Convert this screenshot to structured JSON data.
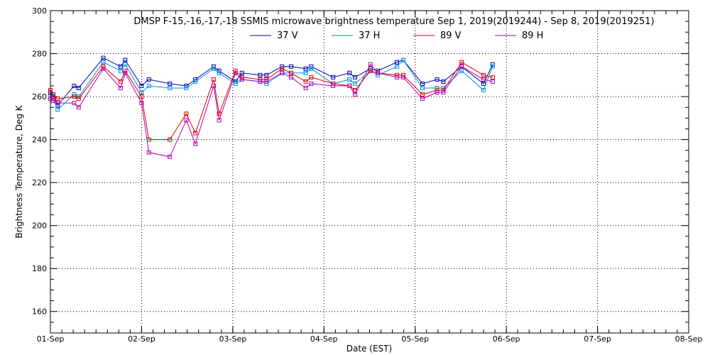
{
  "chart_data": {
    "type": "line",
    "title": "DMSP F-15,-16,-17,-18 SSMIS microwave brightness temperature Sep  1, 2019(2019244) - Sep  8, 2019(2019251)",
    "xlabel": "Date (EST)",
    "ylabel": "Brightness Temperature, Deg K",
    "xlim": [
      0,
      7
    ],
    "ylim": [
      150,
      300
    ],
    "x_ticks": [
      {
        "value": 0,
        "label": "01-Sep"
      },
      {
        "value": 1,
        "label": "02-Sep"
      },
      {
        "value": 2,
        "label": "03-Sep"
      },
      {
        "value": 3,
        "label": "04-Sep"
      },
      {
        "value": 4,
        "label": "05-Sep"
      },
      {
        "value": 5,
        "label": "06-Sep"
      },
      {
        "value": 6,
        "label": "07-Sep"
      },
      {
        "value": 7,
        "label": "08-Sep"
      }
    ],
    "y_ticks": [
      160,
      180,
      200,
      220,
      240,
      260,
      280,
      300
    ],
    "grid": true,
    "legend": "top-center",
    "series": [
      {
        "name": "37 V",
        "color": "#0000b4",
        "points": [
          [
            0.0,
            262
          ],
          [
            0.03,
            261
          ],
          [
            0.08,
            256
          ],
          [
            0.26,
            265
          ],
          [
            0.31,
            264
          ],
          [
            0.58,
            278
          ],
          [
            0.77,
            274
          ],
          [
            0.82,
            277
          ],
          [
            1.0,
            265
          ],
          [
            1.08,
            268
          ],
          [
            1.31,
            266
          ],
          [
            1.49,
            265
          ],
          [
            1.59,
            268
          ],
          [
            1.79,
            274
          ],
          [
            1.85,
            272
          ],
          [
            2.03,
            267
          ],
          [
            2.1,
            271
          ],
          [
            2.3,
            270
          ],
          [
            2.37,
            270
          ],
          [
            2.54,
            274
          ],
          [
            2.64,
            274
          ],
          [
            2.8,
            273
          ],
          [
            2.86,
            274
          ],
          [
            3.1,
            269
          ],
          [
            3.28,
            271
          ],
          [
            3.34,
            269
          ],
          [
            3.51,
            273
          ],
          [
            3.59,
            272
          ],
          [
            3.8,
            276
          ],
          [
            3.87,
            277
          ],
          [
            4.08,
            266
          ],
          [
            4.24,
            268
          ],
          [
            4.31,
            267
          ],
          [
            4.51,
            274
          ],
          [
            4.75,
            266
          ],
          [
            4.85,
            275
          ]
        ]
      },
      {
        "name": "37 H",
        "color": "#0096dc",
        "points": [
          [
            0.0,
            260
          ],
          [
            0.03,
            259
          ],
          [
            0.08,
            254
          ],
          [
            0.26,
            261
          ],
          [
            0.31,
            260
          ],
          [
            0.58,
            276
          ],
          [
            0.77,
            272
          ],
          [
            0.82,
            275
          ],
          [
            1.0,
            262
          ],
          [
            1.08,
            265
          ],
          [
            1.31,
            264
          ],
          [
            1.49,
            264
          ],
          [
            1.59,
            267
          ],
          [
            1.79,
            273
          ],
          [
            1.85,
            271
          ],
          [
            2.03,
            266
          ],
          [
            2.1,
            268
          ],
          [
            2.3,
            267
          ],
          [
            2.37,
            266
          ],
          [
            2.54,
            271
          ],
          [
            2.64,
            271
          ],
          [
            2.8,
            271
          ],
          [
            2.86,
            273
          ],
          [
            3.1,
            266
          ],
          [
            3.28,
            268
          ],
          [
            3.34,
            266
          ],
          [
            3.51,
            272
          ],
          [
            3.59,
            270
          ],
          [
            3.8,
            274
          ],
          [
            3.87,
            277
          ],
          [
            4.08,
            264
          ],
          [
            4.24,
            264
          ],
          [
            4.31,
            264
          ],
          [
            4.51,
            272
          ],
          [
            4.75,
            263
          ],
          [
            4.85,
            274
          ]
        ]
      },
      {
        "name": "89 V",
        "color": "#dc0000",
        "points": [
          [
            0.0,
            263
          ],
          [
            0.03,
            260
          ],
          [
            0.08,
            259
          ],
          [
            0.26,
            260
          ],
          [
            0.31,
            259
          ],
          [
            0.58,
            274
          ],
          [
            0.77,
            267
          ],
          [
            0.82,
            272
          ],
          [
            1.0,
            260
          ],
          [
            1.08,
            240
          ],
          [
            1.31,
            240
          ],
          [
            1.49,
            252
          ],
          [
            1.59,
            243
          ],
          [
            1.79,
            268
          ],
          [
            1.85,
            252
          ],
          [
            2.03,
            272
          ],
          [
            2.1,
            269
          ],
          [
            2.3,
            268
          ],
          [
            2.37,
            268
          ],
          [
            2.54,
            273
          ],
          [
            2.64,
            271
          ],
          [
            2.8,
            267
          ],
          [
            2.86,
            269
          ],
          [
            3.1,
            266
          ],
          [
            3.28,
            265
          ],
          [
            3.34,
            263
          ],
          [
            3.51,
            272
          ],
          [
            3.59,
            271
          ],
          [
            3.8,
            270
          ],
          [
            3.87,
            270
          ],
          [
            4.08,
            261
          ],
          [
            4.24,
            263
          ],
          [
            4.31,
            263
          ],
          [
            4.51,
            276
          ],
          [
            4.75,
            270
          ],
          [
            4.85,
            269
          ]
        ]
      },
      {
        "name": "89 H",
        "color": "#b400b4",
        "points": [
          [
            0.0,
            259
          ],
          [
            0.03,
            258
          ],
          [
            0.08,
            257
          ],
          [
            0.26,
            257
          ],
          [
            0.31,
            255
          ],
          [
            0.58,
            273
          ],
          [
            0.77,
            264
          ],
          [
            0.82,
            271
          ],
          [
            1.0,
            257
          ],
          [
            1.08,
            234
          ],
          [
            1.31,
            232
          ],
          [
            1.49,
            249
          ],
          [
            1.59,
            238
          ],
          [
            1.79,
            265
          ],
          [
            1.85,
            249
          ],
          [
            2.03,
            271
          ],
          [
            2.1,
            268
          ],
          [
            2.3,
            267
          ],
          [
            2.37,
            267
          ],
          [
            2.54,
            271
          ],
          [
            2.64,
            269
          ],
          [
            2.8,
            264
          ],
          [
            2.86,
            266
          ],
          [
            3.1,
            265
          ],
          [
            3.28,
            265
          ],
          [
            3.34,
            261
          ],
          [
            3.51,
            275
          ],
          [
            3.59,
            271
          ],
          [
            3.8,
            269
          ],
          [
            3.87,
            269
          ],
          [
            4.08,
            259
          ],
          [
            4.24,
            262
          ],
          [
            4.31,
            262
          ],
          [
            4.51,
            274
          ],
          [
            4.75,
            268
          ],
          [
            4.85,
            267
          ]
        ]
      }
    ]
  }
}
